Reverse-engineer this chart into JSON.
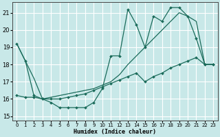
{
  "xlabel": "Humidex (Indice chaleur)",
  "xlim": [
    -0.5,
    23.5
  ],
  "ylim": [
    14.75,
    21.6
  ],
  "yticks": [
    15,
    16,
    17,
    18,
    19,
    20,
    21
  ],
  "xticks": [
    0,
    1,
    2,
    3,
    4,
    5,
    6,
    7,
    8,
    9,
    10,
    11,
    12,
    13,
    14,
    15,
    16,
    17,
    18,
    19,
    20,
    21,
    22,
    23
  ],
  "bg_color": "#c8e8e8",
  "line_color": "#1a6b5a",
  "grid_color": "#ffffff",
  "line1_x": [
    0,
    1,
    2,
    3,
    4,
    5,
    6,
    7,
    8,
    9,
    10,
    11,
    12,
    13,
    14,
    15,
    16,
    17,
    18,
    19,
    20,
    21,
    22,
    23
  ],
  "line1_y": [
    19.2,
    18.2,
    16.2,
    16.0,
    15.8,
    15.5,
    15.5,
    15.5,
    15.5,
    15.8,
    16.6,
    18.5,
    18.5,
    21.2,
    20.3,
    19.0,
    20.8,
    20.5,
    21.3,
    21.3,
    20.8,
    19.5,
    18.0,
    18.0
  ],
  "line2_x": [
    0,
    1,
    2,
    3,
    4,
    5,
    6,
    7,
    8,
    9,
    10,
    11,
    12,
    13,
    14,
    15,
    16,
    17,
    18,
    19,
    20,
    21,
    22,
    23
  ],
  "line2_y": [
    16.2,
    16.1,
    16.1,
    16.0,
    16.0,
    16.0,
    16.1,
    16.2,
    16.3,
    16.5,
    16.7,
    16.9,
    17.1,
    17.3,
    17.5,
    17.0,
    17.3,
    17.5,
    17.8,
    18.0,
    18.2,
    18.4,
    18.0,
    18.0
  ],
  "line3_x": [
    0,
    1,
    2,
    3,
    9,
    10,
    11,
    12,
    13,
    14,
    15,
    16,
    17,
    18,
    19,
    20,
    21,
    22,
    23
  ],
  "line3_y": [
    19.2,
    18.2,
    17.2,
    16.0,
    16.6,
    16.8,
    17.0,
    17.4,
    18.0,
    18.5,
    19.0,
    19.5,
    20.0,
    20.5,
    21.0,
    20.8,
    20.5,
    18.0,
    18.0
  ]
}
